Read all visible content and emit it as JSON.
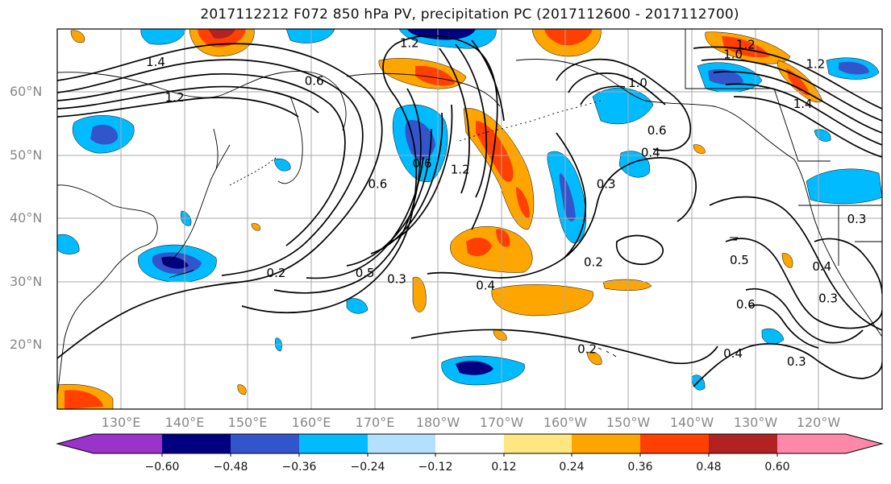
{
  "title": "2017112212 F072 850 hPa PV, precipitation PC (2017112600 - 2017112700)",
  "axes": {
    "lat_labels": [
      "60°N",
      "50°N",
      "40°N",
      "30°N",
      "20°N"
    ],
    "lon_labels": [
      "130°E",
      "140°E",
      "150°E",
      "160°E",
      "170°E",
      "180°W",
      "170°W",
      "160°W",
      "150°W",
      "140°W",
      "130°W",
      "120°W"
    ]
  },
  "colorbar": {
    "tick_labels": [
      "−0.60",
      "−0.48",
      "−0.36",
      "−0.24",
      "−0.12",
      "0.12",
      "0.24",
      "0.36",
      "0.48",
      "0.60"
    ],
    "colors": [
      "#9933cc",
      "#000080",
      "#3355cc",
      "#00bbff",
      "#b3e0ff",
      "#ffffff",
      "#ffe680",
      "#ffa500",
      "#ff4000",
      "#b22222",
      "#ff88aa"
    ]
  },
  "contour_labels": [
    {
      "text": "1.4",
      "lon": 135.5,
      "lat": 64.8
    },
    {
      "text": "1.2",
      "lon": 138.5,
      "lat": 59.2
    },
    {
      "text": "1.2",
      "lon": 175.5,
      "lat": 67.8
    },
    {
      "text": "0.6",
      "lon": 160.5,
      "lat": 61.8
    },
    {
      "text": "1.2",
      "lon": 183.5,
      "lat": 47.8
    },
    {
      "text": "0.6",
      "lon": 170.5,
      "lat": 45.5
    },
    {
      "text": "0.6",
      "lon": 177.5,
      "lat": 48.8
    },
    {
      "text": "0.5",
      "lon": 168.5,
      "lat": 31.5
    },
    {
      "text": "0.3",
      "lon": 173.5,
      "lat": 30.5
    },
    {
      "text": "0.2",
      "lon": 154.5,
      "lat": 31.5
    },
    {
      "text": "0.4",
      "lon": 187.5,
      "lat": 29.5
    },
    {
      "text": "0.3",
      "lon": 206.5,
      "lat": 45.5
    },
    {
      "text": "0.6",
      "lon": 214.5,
      "lat": 54.0
    },
    {
      "text": "0.4",
      "lon": 213.5,
      "lat": 50.5
    },
    {
      "text": "1.0",
      "lon": 211.5,
      "lat": 61.5
    },
    {
      "text": "1.0",
      "lon": 226.5,
      "lat": 66.0
    },
    {
      "text": "1.2",
      "lon": 228.5,
      "lat": 67.5
    },
    {
      "text": "1.2",
      "lon": 239.5,
      "lat": 64.5
    },
    {
      "text": "1.4",
      "lon": 237.5,
      "lat": 58.2
    },
    {
      "text": "0.2",
      "lon": 204.5,
      "lat": 33.2
    },
    {
      "text": "0.2",
      "lon": 203.5,
      "lat": 19.5
    },
    {
      "text": "0.5",
      "lon": 227.5,
      "lat": 33.5
    },
    {
      "text": "0.6",
      "lon": 228.5,
      "lat": 26.5
    },
    {
      "text": "0.4",
      "lon": 226.5,
      "lat": 18.8
    },
    {
      "text": "0.3",
      "lon": 236.5,
      "lat": 17.5
    },
    {
      "text": "0.3",
      "lon": 241.5,
      "lat": 27.5
    },
    {
      "text": "0.4",
      "lon": 240.5,
      "lat": 32.5
    },
    {
      "text": "0.3",
      "lon": 246.0,
      "lat": 40.0
    }
  ]
}
